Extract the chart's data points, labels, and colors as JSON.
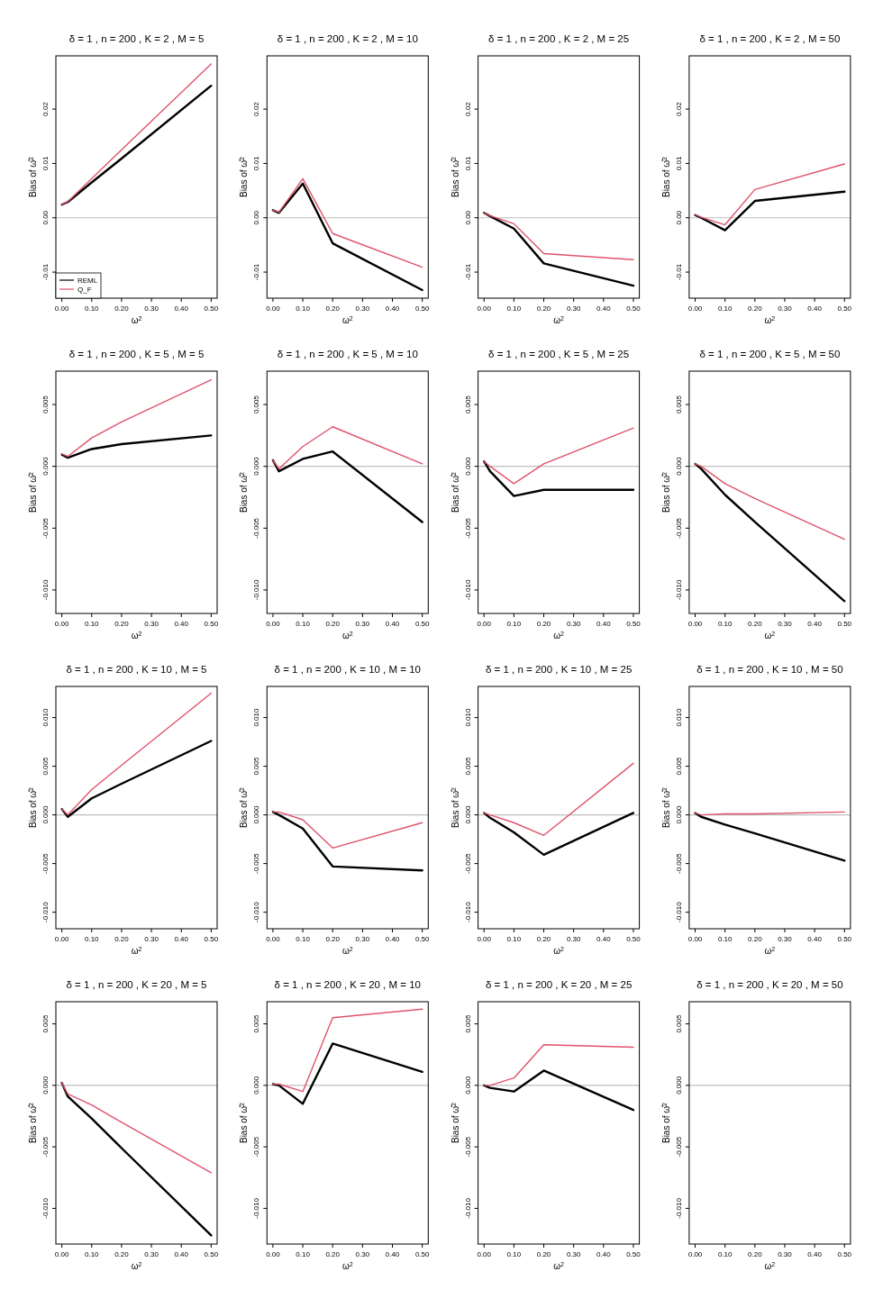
{
  "chart_data": [
    {
      "type": "line",
      "title": "δ = 1 , n = 200 , K = 2 , M = 5",
      "xlabel": "ω$^{2}$",
      "ylabel": "Bias of ω̂$^{2}$",
      "x": [
        0,
        0.02,
        0.1,
        0.2,
        0.5
      ],
      "xlim": [
        -0.02,
        0.52
      ],
      "xticks": [
        {
          "value": 0,
          "label": "0.00"
        },
        {
          "value": 0.1,
          "label": "0.10"
        },
        {
          "value": 0.2,
          "label": "0.20"
        },
        {
          "value": 0.3,
          "label": "0.30"
        },
        {
          "value": 0.4,
          "label": "0.40"
        },
        {
          "value": 0.5,
          "label": "0.50"
        }
      ],
      "ylim": [
        -0.0148,
        0.0298
      ],
      "yticks": [
        -0.01,
        {
          "value": 0,
          "label": "0.00"
        },
        0.01,
        0.02
      ],
      "ref_lines": [
        {
          "axis": "y",
          "value": 0,
          "color": "#bebebe"
        }
      ],
      "legend": "bottom left",
      "series": [
        {
          "name": "REML",
          "color": "#000000",
          "values": [
            0.0024,
            0.0029,
            0.0065,
            0.0109,
            0.0243
          ]
        },
        {
          "name": "Q_F",
          "color": "#df536b",
          "values": [
            0.0024,
            0.003,
            0.0072,
            0.0125,
            0.0283
          ]
        }
      ]
    },
    {
      "type": "line",
      "title": "δ = 1 , n = 200 , K = 2 , M = 10",
      "xlabel": "ω$^{2}$",
      "ylabel": "Bias of ω̂$^{2}$",
      "x": [
        0,
        0.02,
        0.1,
        0.2,
        0.5
      ],
      "xlim": [
        -0.02,
        0.52
      ],
      "xticks": [
        {
          "value": 0,
          "label": "0.00"
        },
        {
          "value": 0.1,
          "label": "0.10"
        },
        {
          "value": 0.2,
          "label": "0.20"
        },
        {
          "value": 0.3,
          "label": "0.30"
        },
        {
          "value": 0.4,
          "label": "0.40"
        },
        {
          "value": 0.5,
          "label": "0.50"
        }
      ],
      "ylim": [
        -0.0148,
        0.0298
      ],
      "yticks": [
        -0.01,
        {
          "value": 0,
          "label": "0.00"
        },
        0.01,
        0.02
      ],
      "ref_lines": [
        {
          "axis": "y",
          "value": 0,
          "color": "#bebebe"
        }
      ],
      "series": [
        {
          "color": "#000000",
          "values": [
            0.0014,
            0.0009,
            0.0063,
            -0.0047,
            -0.0133
          ]
        },
        {
          "color": "#df536b",
          "values": [
            0.0014,
            0.001,
            0.0072,
            -0.0029,
            -0.0091
          ]
        }
      ]
    },
    {
      "type": "line",
      "title": "δ = 1 , n = 200 , K = 2 , M = 25",
      "xlabel": "ω$^{2}$",
      "ylabel": "Bias of ω̂$^{2}$",
      "x": [
        0,
        0.02,
        0.1,
        0.2,
        0.5
      ],
      "xlim": [
        -0.02,
        0.52
      ],
      "xticks": [
        {
          "value": 0,
          "label": "0.00"
        },
        {
          "value": 0.1,
          "label": "0.10"
        },
        {
          "value": 0.2,
          "label": "0.20"
        },
        {
          "value": 0.3,
          "label": "0.30"
        },
        {
          "value": 0.4,
          "label": "0.40"
        },
        {
          "value": 0.5,
          "label": "0.50"
        }
      ],
      "ylim": [
        -0.0148,
        0.0298
      ],
      "yticks": [
        -0.01,
        {
          "value": 0,
          "label": "0.00"
        },
        0.01,
        0.02
      ],
      "ref_lines": [
        {
          "axis": "y",
          "value": 0,
          "color": "#bebebe"
        }
      ],
      "series": [
        {
          "color": "#000000",
          "values": [
            0.0009,
            0.0003,
            -0.002,
            -0.0084,
            -0.0125
          ]
        },
        {
          "color": "#df536b",
          "values": [
            0.0009,
            0.0004,
            -0.0011,
            -0.0066,
            -0.0077
          ]
        }
      ]
    },
    {
      "type": "line",
      "title": "δ = 1 , n = 200 , K = 2 , M = 50",
      "xlabel": "ω$^{2}$",
      "ylabel": "Bias of ω̂$^{2}$",
      "x": [
        0,
        0.02,
        0.1,
        0.2,
        0.5
      ],
      "xlim": [
        -0.02,
        0.52
      ],
      "xticks": [
        {
          "value": 0,
          "label": "0.00"
        },
        {
          "value": 0.1,
          "label": "0.10"
        },
        {
          "value": 0.2,
          "label": "0.20"
        },
        {
          "value": 0.3,
          "label": "0.30"
        },
        {
          "value": 0.4,
          "label": "0.40"
        },
        {
          "value": 0.5,
          "label": "0.50"
        }
      ],
      "ylim": [
        -0.0148,
        0.0298
      ],
      "yticks": [
        -0.01,
        {
          "value": 0,
          "label": "0.00"
        },
        0.01,
        0.02
      ],
      "ref_lines": [
        {
          "axis": "y",
          "value": 0,
          "color": "#bebebe"
        }
      ],
      "series": [
        {
          "color": "#000000",
          "values": [
            0.0005,
            0.0,
            -0.0023,
            0.0031,
            0.0048
          ]
        },
        {
          "color": "#df536b",
          "values": [
            0.0006,
            0.0001,
            -0.0013,
            0.0052,
            0.0099
          ]
        }
      ]
    },
    {
      "type": "line",
      "title": "δ = 1 , n = 200 , K = 5 , M = 5",
      "xlabel": "ω$^{2}$",
      "ylabel": "Bias of ω̂$^{2}$",
      "x": [
        0,
        0.02,
        0.1,
        0.2,
        0.5
      ],
      "xlim": [
        -0.02,
        0.52
      ],
      "xticks": [
        {
          "value": 0,
          "label": "0.00"
        },
        {
          "value": 0.1,
          "label": "0.10"
        },
        {
          "value": 0.2,
          "label": "0.20"
        },
        {
          "value": 0.3,
          "label": "0.30"
        },
        {
          "value": 0.4,
          "label": "0.40"
        },
        {
          "value": 0.5,
          "label": "0.50"
        }
      ],
      "ylim": [
        -0.0119,
        0.0077
      ],
      "yticks": [
        {
          "value": -0.01,
          "label": "-0.010"
        },
        -0.005,
        {
          "value": 0,
          "label": "0.000"
        },
        0.005
      ],
      "ref_lines": [
        {
          "axis": "y",
          "value": 0,
          "color": "#bebebe"
        }
      ],
      "series": [
        {
          "color": "#000000",
          "values": [
            0.00095,
            0.0007,
            0.0014,
            0.0018,
            0.0025
          ]
        },
        {
          "color": "#df536b",
          "values": [
            0.001,
            0.0008,
            0.0023,
            0.0036,
            0.007
          ]
        }
      ]
    },
    {
      "type": "line",
      "title": "δ = 1 , n = 200 , K = 5 , M = 10",
      "xlabel": "ω$^{2}$",
      "ylabel": "Bias of ω̂$^{2}$",
      "x": [
        0,
        0.02,
        0.1,
        0.2,
        0.5
      ],
      "xlim": [
        -0.02,
        0.52
      ],
      "xticks": [
        {
          "value": 0,
          "label": "0.00"
        },
        {
          "value": 0.1,
          "label": "0.10"
        },
        {
          "value": 0.2,
          "label": "0.20"
        },
        {
          "value": 0.3,
          "label": "0.30"
        },
        {
          "value": 0.4,
          "label": "0.40"
        },
        {
          "value": 0.5,
          "label": "0.50"
        }
      ],
      "ylim": [
        -0.0119,
        0.0077
      ],
      "yticks": [
        {
          "value": -0.01,
          "label": "-0.010"
        },
        -0.005,
        {
          "value": 0,
          "label": "0.000"
        },
        0.005
      ],
      "ref_lines": [
        {
          "axis": "y",
          "value": 0,
          "color": "#bebebe"
        }
      ],
      "series": [
        {
          "color": "#000000",
          "values": [
            0.0005,
            -0.0004,
            0.0006,
            0.0012,
            -0.0045
          ]
        },
        {
          "color": "#df536b",
          "values": [
            0.0005,
            -0.0002,
            0.0016,
            0.0032,
            0.0002
          ]
        }
      ]
    },
    {
      "type": "line",
      "title": "δ = 1 , n = 200 , K = 5 , M = 25",
      "xlabel": "ω$^{2}$",
      "ylabel": "Bias of ω̂$^{2}$",
      "x": [
        0,
        0.02,
        0.1,
        0.2,
        0.5
      ],
      "xlim": [
        -0.02,
        0.52
      ],
      "xticks": [
        {
          "value": 0,
          "label": "0.00"
        },
        {
          "value": 0.1,
          "label": "0.10"
        },
        {
          "value": 0.2,
          "label": "0.20"
        },
        {
          "value": 0.3,
          "label": "0.30"
        },
        {
          "value": 0.4,
          "label": "0.40"
        },
        {
          "value": 0.5,
          "label": "0.50"
        }
      ],
      "ylim": [
        -0.0119,
        0.0077
      ],
      "yticks": [
        {
          "value": -0.01,
          "label": "-0.010"
        },
        -0.005,
        {
          "value": 0,
          "label": "0.000"
        },
        0.005
      ],
      "ref_lines": [
        {
          "axis": "y",
          "value": 0,
          "color": "#bebebe"
        }
      ],
      "series": [
        {
          "color": "#000000",
          "values": [
            0.0004,
            -0.0004,
            -0.0024,
            -0.0019,
            -0.0019
          ]
        },
        {
          "color": "#df536b",
          "values": [
            0.0004,
            0.0,
            -0.0014,
            0.0002,
            0.0031
          ]
        }
      ]
    },
    {
      "type": "line",
      "title": "δ = 1 , n = 200 , K = 5 , M = 50",
      "xlabel": "ω$^{2}$",
      "ylabel": "Bias of ω̂$^{2}$",
      "x": [
        0,
        0.02,
        0.1,
        0.2,
        0.5
      ],
      "xlim": [
        -0.02,
        0.52
      ],
      "xticks": [
        {
          "value": 0,
          "label": "0.00"
        },
        {
          "value": 0.1,
          "label": "0.10"
        },
        {
          "value": 0.2,
          "label": "0.20"
        },
        {
          "value": 0.3,
          "label": "0.30"
        },
        {
          "value": 0.4,
          "label": "0.40"
        },
        {
          "value": 0.5,
          "label": "0.50"
        }
      ],
      "ylim": [
        -0.0119,
        0.0077
      ],
      "yticks": [
        {
          "value": -0.01,
          "label": "-0.010"
        },
        -0.005,
        {
          "value": 0,
          "label": "0.000"
        },
        0.005
      ],
      "ref_lines": [
        {
          "axis": "y",
          "value": 0,
          "color": "#bebebe"
        }
      ],
      "series": [
        {
          "color": "#000000",
          "values": [
            0.0002,
            -0.0002,
            -0.0023,
            -0.0045,
            -0.0109
          ]
        },
        {
          "color": "#df536b",
          "values": [
            0.0002,
            0.0,
            -0.0014,
            -0.0026,
            -0.0059
          ]
        }
      ]
    },
    {
      "type": "line",
      "title": "δ = 1 , n = 200 , K = 10 , M = 5",
      "xlabel": "ω$^{2}$",
      "ylabel": "Bias of ω̂$^{2}$",
      "x": [
        0,
        0.02,
        0.1,
        0.2,
        0.5
      ],
      "xlim": [
        -0.02,
        0.52
      ],
      "xticks": [
        {
          "value": 0,
          "label": "0.00"
        },
        {
          "value": 0.1,
          "label": "0.10"
        },
        {
          "value": 0.2,
          "label": "0.20"
        },
        {
          "value": 0.3,
          "label": "0.30"
        },
        {
          "value": 0.4,
          "label": "0.40"
        },
        {
          "value": 0.5,
          "label": "0.50"
        }
      ],
      "ylim": [
        -0.0117,
        0.0132
      ],
      "yticks": [
        {
          "value": -0.01,
          "label": "-0.010"
        },
        -0.005,
        {
          "value": 0,
          "label": "0.000"
        },
        0.005,
        {
          "value": 0.01,
          "label": "0.010"
        }
      ],
      "ref_lines": [
        {
          "axis": "y",
          "value": 0,
          "color": "#bebebe"
        }
      ],
      "series": [
        {
          "color": "#000000",
          "values": [
            0.0006,
            -0.0002,
            0.0017,
            0.0032,
            0.0076
          ]
        },
        {
          "color": "#df536b",
          "values": [
            0.0006,
            0.0,
            0.0026,
            0.0051,
            0.0125
          ]
        }
      ]
    },
    {
      "type": "line",
      "title": "δ = 1 , n = 200 , K = 10 , M = 10",
      "xlabel": "ω$^{2}$",
      "ylabel": "Bias of ω̂$^{2}$",
      "x": [
        0,
        0.02,
        0.1,
        0.2,
        0.5
      ],
      "xlim": [
        -0.02,
        0.52
      ],
      "xticks": [
        {
          "value": 0,
          "label": "0.00"
        },
        {
          "value": 0.1,
          "label": "0.10"
        },
        {
          "value": 0.2,
          "label": "0.20"
        },
        {
          "value": 0.3,
          "label": "0.30"
        },
        {
          "value": 0.4,
          "label": "0.40"
        },
        {
          "value": 0.5,
          "label": "0.50"
        }
      ],
      "ylim": [
        -0.0117,
        0.0132
      ],
      "yticks": [
        {
          "value": -0.01,
          "label": "-0.010"
        },
        -0.005,
        {
          "value": 0,
          "label": "0.000"
        },
        0.005,
        {
          "value": 0.01,
          "label": "0.010"
        }
      ],
      "ref_lines": [
        {
          "axis": "y",
          "value": 0,
          "color": "#bebebe"
        }
      ],
      "series": [
        {
          "color": "#000000",
          "values": [
            0.0003,
            0.0,
            -0.0014,
            -0.0053,
            -0.0057
          ]
        },
        {
          "color": "#df536b",
          "values": [
            0.0003,
            0.0003,
            -0.0005,
            -0.0034,
            -0.0008
          ]
        }
      ]
    },
    {
      "type": "line",
      "title": "δ = 1 , n = 200 , K = 10 , M = 25",
      "xlabel": "ω$^{2}$",
      "ylabel": "Bias of ω̂$^{2}$",
      "x": [
        0,
        0.02,
        0.1,
        0.2,
        0.5
      ],
      "xlim": [
        -0.02,
        0.52
      ],
      "xticks": [
        {
          "value": 0,
          "label": "0.00"
        },
        {
          "value": 0.1,
          "label": "0.10"
        },
        {
          "value": 0.2,
          "label": "0.20"
        },
        {
          "value": 0.3,
          "label": "0.30"
        },
        {
          "value": 0.4,
          "label": "0.40"
        },
        {
          "value": 0.5,
          "label": "0.50"
        }
      ],
      "ylim": [
        -0.0117,
        0.0132
      ],
      "yticks": [
        {
          "value": -0.01,
          "label": "-0.010"
        },
        -0.005,
        {
          "value": 0,
          "label": "0.000"
        },
        0.005,
        {
          "value": 0.01,
          "label": "0.010"
        }
      ],
      "ref_lines": [
        {
          "axis": "y",
          "value": 0,
          "color": "#bebebe"
        }
      ],
      "series": [
        {
          "color": "#000000",
          "values": [
            0.0002,
            -0.0003,
            -0.0018,
            -0.0041,
            0.0002
          ]
        },
        {
          "color": "#df536b",
          "values": [
            0.0002,
            0.0,
            -0.0008,
            -0.0021,
            0.0053
          ]
        }
      ]
    },
    {
      "type": "line",
      "title": "δ = 1 , n = 200 , K = 10 , M = 50",
      "xlabel": "ω$^{2}$",
      "ylabel": "Bias of ω̂$^{2}$",
      "x": [
        0,
        0.02,
        0.1,
        0.2,
        0.5
      ],
      "xlim": [
        -0.02,
        0.52
      ],
      "xticks": [
        {
          "value": 0,
          "label": "0.00"
        },
        {
          "value": 0.1,
          "label": "0.10"
        },
        {
          "value": 0.2,
          "label": "0.20"
        },
        {
          "value": 0.3,
          "label": "0.30"
        },
        {
          "value": 0.4,
          "label": "0.40"
        },
        {
          "value": 0.5,
          "label": "0.50"
        }
      ],
      "ylim": [
        -0.0117,
        0.0132
      ],
      "yticks": [
        {
          "value": -0.01,
          "label": "-0.010"
        },
        -0.005,
        {
          "value": 0,
          "label": "0.000"
        },
        0.005,
        {
          "value": 0.01,
          "label": "0.010"
        }
      ],
      "ref_lines": [
        {
          "axis": "y",
          "value": 0,
          "color": "#bebebe"
        }
      ],
      "series": [
        {
          "color": "#000000",
          "values": [
            0.0002,
            -0.0002,
            -0.001,
            -0.0019,
            -0.0047
          ]
        },
        {
          "color": "#df536b",
          "values": [
            0.0002,
            0.0,
            0.0001,
            0.0001,
            0.0003
          ]
        }
      ]
    },
    {
      "type": "line",
      "title": "δ = 1 , n = 200 , K = 20 , M = 5",
      "xlabel": "ω$^{2}$",
      "ylabel": "Bias of ω̂$^{2}$",
      "x": [
        0,
        0.02,
        0.1,
        0.2,
        0.5
      ],
      "xlim": [
        -0.02,
        0.52
      ],
      "xticks": [
        {
          "value": 0,
          "label": "0.00"
        },
        {
          "value": 0.1,
          "label": "0.10"
        },
        {
          "value": 0.2,
          "label": "0.20"
        },
        {
          "value": 0.3,
          "label": "0.30"
        },
        {
          "value": 0.4,
          "label": "0.40"
        },
        {
          "value": 0.5,
          "label": "0.50"
        }
      ],
      "ylim": [
        -0.0129,
        0.0068
      ],
      "yticks": [
        {
          "value": -0.01,
          "label": "-0.010"
        },
        -0.005,
        {
          "value": 0,
          "label": "0.000"
        },
        0.005
      ],
      "ref_lines": [
        {
          "axis": "y",
          "value": 0,
          "color": "#bebebe"
        }
      ],
      "series": [
        {
          "color": "#000000",
          "values": [
            0.0002,
            -0.0009,
            -0.0027,
            -0.0051,
            -0.0122
          ]
        },
        {
          "color": "#df536b",
          "values": [
            0.0002,
            -0.0007,
            -0.0016,
            -0.003,
            -0.0071
          ]
        }
      ]
    },
    {
      "type": "line",
      "title": "δ = 1 , n = 200 , K = 20 , M = 10",
      "xlabel": "ω$^{2}$",
      "ylabel": "Bias of ω̂$^{2}$",
      "x": [
        0,
        0.02,
        0.1,
        0.2,
        0.5
      ],
      "xlim": [
        -0.02,
        0.52
      ],
      "xticks": [
        {
          "value": 0,
          "label": "0.00"
        },
        {
          "value": 0.1,
          "label": "0.10"
        },
        {
          "value": 0.2,
          "label": "0.20"
        },
        {
          "value": 0.3,
          "label": "0.30"
        },
        {
          "value": 0.4,
          "label": "0.40"
        },
        {
          "value": 0.5,
          "label": "0.50"
        }
      ],
      "ylim": [
        -0.0129,
        0.0068
      ],
      "yticks": [
        {
          "value": -0.01,
          "label": "-0.010"
        },
        -0.005,
        {
          "value": 0,
          "label": "0.000"
        },
        0.005
      ],
      "ref_lines": [
        {
          "axis": "y",
          "value": 0,
          "color": "#bebebe"
        }
      ],
      "series": [
        {
          "color": "#000000",
          "values": [
            0.0001,
            0.0,
            -0.0015,
            0.0034,
            0.0011
          ]
        },
        {
          "color": "#df536b",
          "values": [
            0.0001,
            0.0001,
            -0.0005,
            0.0055,
            0.0062
          ]
        }
      ]
    },
    {
      "type": "line",
      "title": "δ = 1 , n = 200 , K = 20 , M = 25",
      "xlabel": "ω$^{2}$",
      "ylabel": "Bias of ω̂$^{2}$",
      "x": [
        0,
        0.02,
        0.1,
        0.2,
        0.5
      ],
      "xlim": [
        -0.02,
        0.52
      ],
      "xticks": [
        {
          "value": 0,
          "label": "0.00"
        },
        {
          "value": 0.1,
          "label": "0.10"
        },
        {
          "value": 0.2,
          "label": "0.20"
        },
        {
          "value": 0.3,
          "label": "0.30"
        },
        {
          "value": 0.4,
          "label": "0.40"
        },
        {
          "value": 0.5,
          "label": "0.50"
        }
      ],
      "ylim": [
        -0.0129,
        0.0068
      ],
      "yticks": [
        {
          "value": -0.01,
          "label": "-0.010"
        },
        -0.005,
        {
          "value": 0,
          "label": "0.000"
        },
        0.005
      ],
      "ref_lines": [
        {
          "axis": "y",
          "value": 0,
          "color": "#bebebe"
        }
      ],
      "series": [
        {
          "color": "#000000",
          "values": [
            0.0,
            -0.0002,
            -0.0005,
            0.0012,
            -0.002
          ]
        },
        {
          "color": "#df536b",
          "values": [
            0.0,
            0.0,
            0.0006,
            0.0033,
            0.0031
          ]
        }
      ]
    },
    {
      "type": "line",
      "title": "δ = 1 , n = 200 , K = 20 , M = 50",
      "xlabel": "ω$^{2}$",
      "ylabel": "Bias of ω̂$^{2}$",
      "xlim": [
        -0.02,
        0.52
      ],
      "xticks": [
        {
          "value": 0,
          "label": "0.00"
        },
        {
          "value": 0.1,
          "label": "0.10"
        },
        {
          "value": 0.2,
          "label": "0.20"
        },
        {
          "value": 0.3,
          "label": "0.30"
        },
        {
          "value": 0.4,
          "label": "0.40"
        },
        {
          "value": 0.5,
          "label": "0.50"
        }
      ],
      "ylim": [
        -0.0129,
        0.0068
      ],
      "yticks": [
        {
          "value": -0.01,
          "label": "-0.010"
        },
        -0.005,
        {
          "value": 0,
          "label": "0.000"
        },
        0.005
      ],
      "ref_lines": [
        {
          "axis": "y",
          "value": 0,
          "color": "#bebebe"
        }
      ]
    }
  ]
}
